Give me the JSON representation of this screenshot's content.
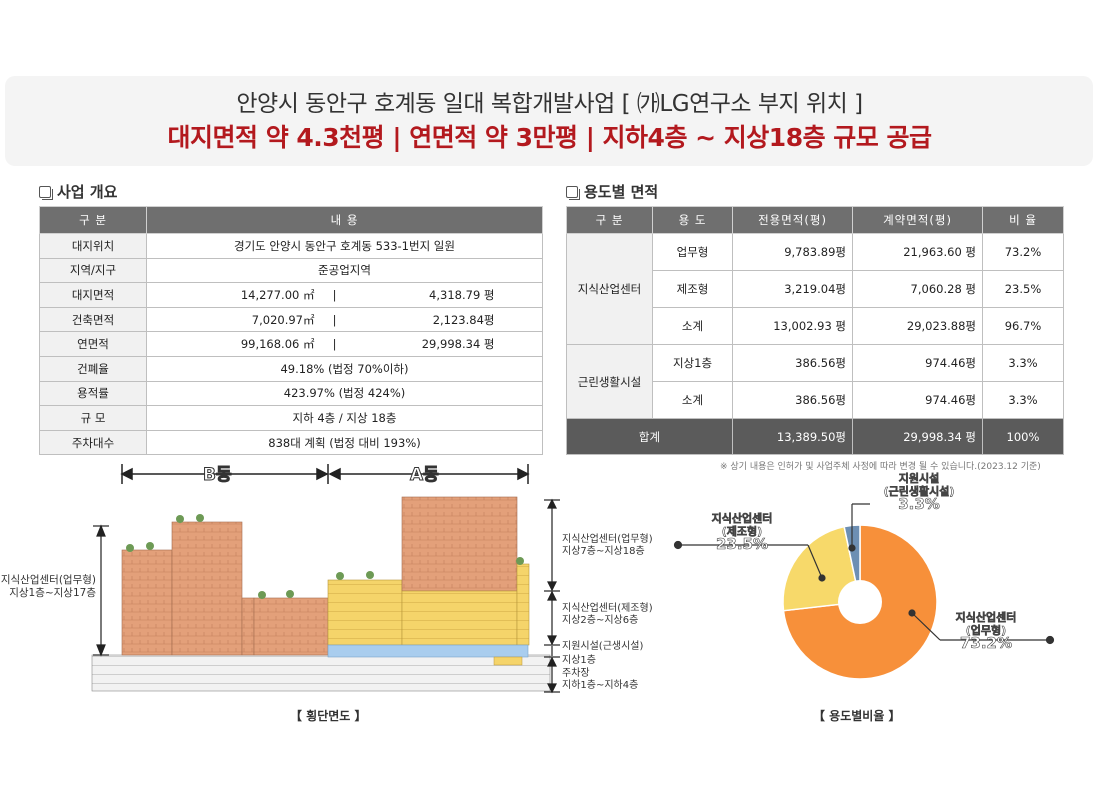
{
  "header": {
    "line1": "안양시 동안구 호계동 일대 복합개발사업 [ ㈎LG연구소 부지 위치 ]",
    "line2": "대지면적 약 4.3천평 | 연면적 약 3만평 | 지하4층 ~ 지상18층 규모 공급"
  },
  "overview": {
    "title": "사업 개요",
    "headers": [
      "구 분",
      "내 용"
    ],
    "rows": {
      "location": {
        "label": "대지위치",
        "value": "경기도 안양시 동안구 호계동 533-1번지 일원"
      },
      "zone": {
        "label": "지역/지구",
        "value": "준공업지역"
      },
      "site_area": {
        "label": "대지면적",
        "m2": "14,277.00 ㎡",
        "sep": "|",
        "pyeong": "4,318.79 평"
      },
      "building_area": {
        "label": "건축면적",
        "m2": "7,020.97㎡",
        "sep": "|",
        "pyeong": "2,123.84평"
      },
      "floor_area": {
        "label": "연면적",
        "m2": "99,168.06 ㎡",
        "sep": "|",
        "pyeong": "29,998.34 평"
      },
      "coverage": {
        "label": "건폐율",
        "value": "49.18% (법정 70%이하)"
      },
      "far": {
        "label": "용적률",
        "value": "423.97% (법정 424%)"
      },
      "scale": {
        "label": "규 모",
        "value": "지하 4층 / 지상 18층"
      },
      "parking": {
        "label": "주차대수",
        "value": "838대 계획 (법정 대비 193%)"
      }
    }
  },
  "usage": {
    "title": "용도별 면적",
    "headers": [
      "구 분",
      "용 도",
      "전용면적(평)",
      "계약면적(평)",
      "비 율"
    ],
    "group1": "지식산업센터",
    "group2": "근린생활시설",
    "r1": {
      "use": "업무형",
      "exclusive": "9,783.89평",
      "contract": "21,963.60 평",
      "ratio": "73.2%"
    },
    "r2": {
      "use": "제조형",
      "exclusive": "3,219.04평",
      "contract": "7,060.28 평",
      "ratio": "23.5%"
    },
    "r3": {
      "use": "소계",
      "exclusive": "13,002.93 평",
      "contract": "29,023.88평",
      "ratio": "96.7%"
    },
    "r4": {
      "use": "지상1층",
      "exclusive": "386.56평",
      "contract": "974.46평",
      "ratio": "3.3%"
    },
    "r5": {
      "use": "소계",
      "exclusive": "386.56평",
      "contract": "974.46평",
      "ratio": "3.3%"
    },
    "total": {
      "label": "합계",
      "exclusive": "13,389.50평",
      "contract": "29,998.34 평",
      "ratio": "100%"
    },
    "note": "※ 상기 내용은 인허가 및 사업주체 사정에 따라 변경 될 수 있습니다.(2023.12 기준)"
  },
  "section_diagram": {
    "caption": "【 횡단면도 】",
    "building_b": "B동",
    "building_a": "A동",
    "left_label_1": "지식산업센터(업무형)",
    "left_label_2": "지상1층~지상17층",
    "right_labels": [
      {
        "l1": "지식산업센터(업무형)",
        "l2": "지상7층~지상18층"
      },
      {
        "l1": "지식산업센터(제조형)",
        "l2": "지상2층~지상6층"
      },
      {
        "l1": "지원시설(근생시설)",
        "l2": ""
      },
      {
        "l1": "지상1층",
        "l2": ""
      },
      {
        "l1": "주차장",
        "l2": "지하1층~지하4층"
      }
    ]
  },
  "pie": {
    "caption": "【 용도별비율 】",
    "colors": {
      "office": "#f7903a",
      "manufacture": "#f7d96a",
      "support": "#6d8fb3"
    },
    "labels": {
      "support_l1": "지원시설",
      "support_l2": "(근린생활시설)",
      "support_pct": "3.3%",
      "manu_l1": "지식산업센터",
      "manu_l2": "(제조형)",
      "manu_pct": "23.5%",
      "office_l1": "지식산업센터",
      "office_l2": "(업무형)",
      "office_pct": "73.2%"
    }
  },
  "chart_data": {
    "type": "pie",
    "title": "",
    "categories": [
      "지식산업센터(업무형)",
      "지식산업센터(제조형)",
      "지원시설(근린생활시설)"
    ],
    "values": [
      73.2,
      23.5,
      3.3
    ],
    "donut": true
  }
}
